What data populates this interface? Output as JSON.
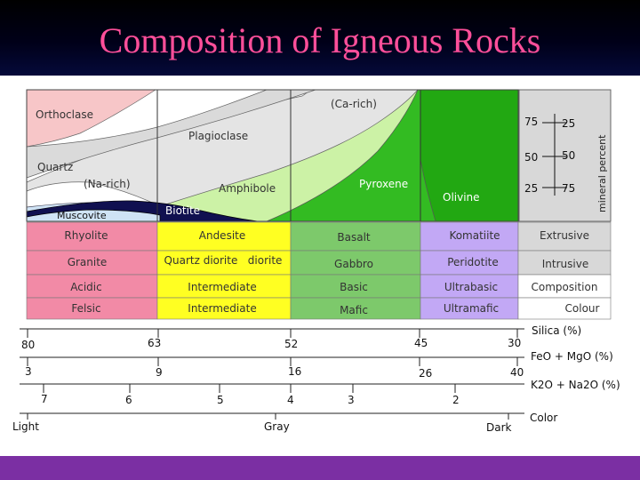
{
  "title": "Composition of Igneous Rocks",
  "colors": {
    "title": "#ff4f9a",
    "orthoclase": "#f7c6c8",
    "quartz": "#e2e2e2",
    "plagioclase": "#e4e4e4",
    "amphibole": "#ccf2a6",
    "pyroxene": "#33bb22",
    "olivine": "#22a812",
    "biotite": "#101050",
    "row_felsic": "#f28aa6",
    "row_intermediate": "#ffff22",
    "row_mafic": "#7dc96b",
    "row_ultramafic": "#c2a8f5",
    "footer": "#7b2fa3"
  },
  "minerals": {
    "orthoclase": "Orthoclase",
    "ca_rich": "(Ca-rich)",
    "plagioclase": "Plagioclase",
    "quartz": "Quartz",
    "na_rich": "(Na-rich)",
    "amphibole": "Amphibole",
    "pyroxene": "Pyroxene",
    "olivine": "Olivine",
    "muscovite": "Muscovite",
    "biotite": "Biotite"
  },
  "mineral_percent": {
    "label": "mineral percent",
    "left": [
      "75",
      "50",
      "25"
    ],
    "right": [
      "25",
      "50",
      "75"
    ]
  },
  "table": {
    "rows": [
      [
        "Rhyolite",
        "Andesite",
        "Basalt",
        "Komatiite",
        "Extrusive"
      ],
      [
        "Granite",
        "Quartz diorite   diorite",
        "Gabbro",
        "Peridotite",
        "Intrusive"
      ],
      [
        "Acidic",
        "Intermediate",
        "Basic",
        "Ultrabasic",
        "Composition"
      ],
      [
        "Felsic",
        "Intermediate",
        "Mafic",
        "Ultramafic",
        "Colour"
      ]
    ]
  },
  "scales": {
    "silica": {
      "label": "Silica (%)",
      "ticks": [
        "80",
        "63",
        "52",
        "45",
        "30"
      ]
    },
    "feo": {
      "label": "FeO + MgO (%)",
      "ticks": [
        "3",
        "9",
        "16",
        "26",
        "40"
      ]
    },
    "k2o": {
      "label": "K2O + Na2O (%)",
      "ticks": [
        "7",
        "6",
        "5",
        "4",
        "3",
        "2"
      ]
    },
    "color": {
      "label": "Color",
      "ticks": [
        "Light",
        "Gray",
        "Dark"
      ]
    }
  }
}
